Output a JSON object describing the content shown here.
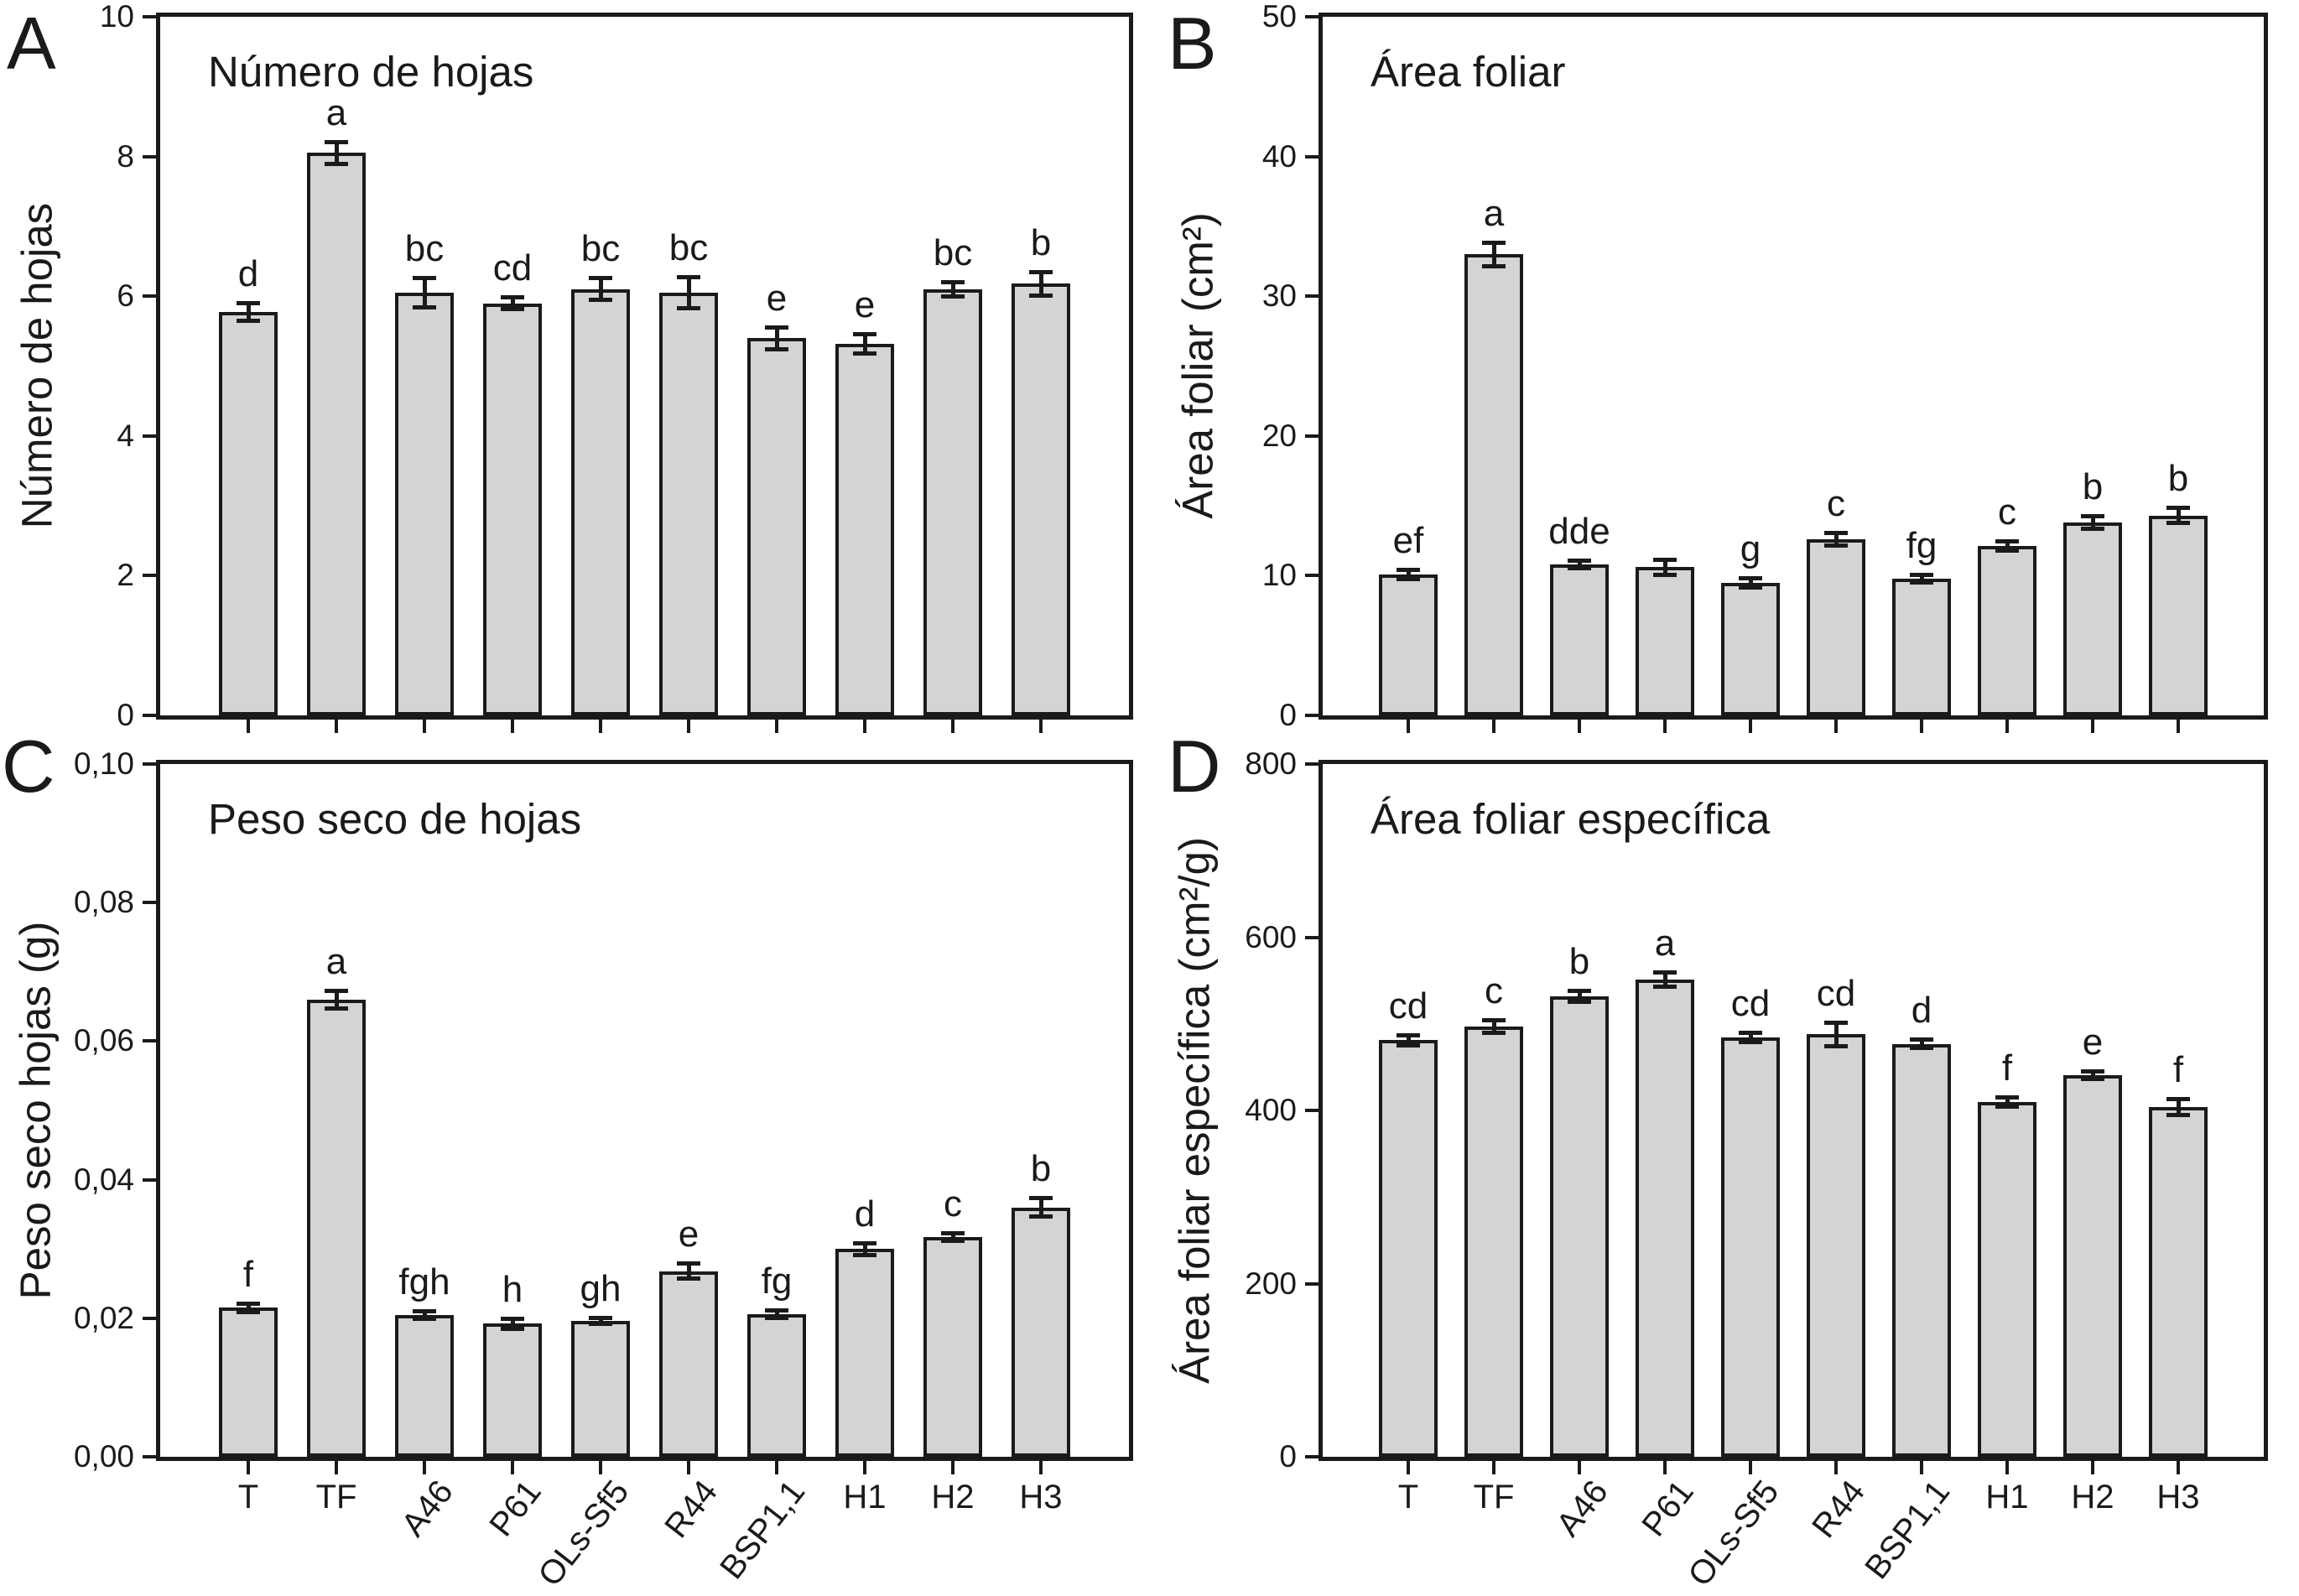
{
  "colors": {
    "bar_fill": "#d4d4d4",
    "line": "#1a1a1a",
    "background": "#ffffff"
  },
  "x_categories": [
    "T",
    "TF",
    "A46",
    "P61",
    "OLs-Sf5",
    "R44",
    "BSP1,1",
    "H1",
    "H2",
    "H3"
  ],
  "rotated_category_indices": [
    2,
    3,
    4,
    5,
    6
  ],
  "chart_data": [
    {
      "type": "bar",
      "panel_letter": "A",
      "title": "Número de hojas",
      "ylabel": "Número de hojas",
      "xlabel": "",
      "ylim": [
        0,
        10
      ],
      "ytick_values": [
        0,
        2,
        4,
        6,
        8,
        10
      ],
      "ytick_labels": [
        "0",
        "2",
        "4",
        "6",
        "8",
        "10"
      ],
      "categories": [
        "T",
        "TF",
        "A46",
        "P61",
        "OLs-Sf5",
        "R44",
        "BSP1,1",
        "H1",
        "H2",
        "H3"
      ],
      "values": [
        5.78,
        8.05,
        6.05,
        5.9,
        6.1,
        6.05,
        5.4,
        5.32,
        6.1,
        6.18
      ],
      "errors": [
        0.12,
        0.15,
        0.2,
        0.08,
        0.15,
        0.22,
        0.15,
        0.13,
        0.1,
        0.16
      ],
      "sig_letters": [
        "d",
        "a",
        "bc",
        "cd",
        "bc",
        "bc",
        "e",
        "e",
        "bc",
        "b"
      ],
      "show_x_tick_labels": false,
      "grid": false,
      "legend": "none"
    },
    {
      "type": "bar",
      "panel_letter": "B",
      "title": "Área foliar",
      "ylabel": "Área foliar (cm²)",
      "xlabel": "",
      "ylim": [
        0,
        50
      ],
      "ytick_values": [
        0,
        10,
        20,
        30,
        40,
        50
      ],
      "ytick_labels": [
        "0",
        "10",
        "20",
        "30",
        "40",
        "50"
      ],
      "categories": [
        "T",
        "TF",
        "A46",
        "P61",
        "OLs-Sf5",
        "R44",
        "BSP1,1",
        "H1",
        "H2",
        "H3"
      ],
      "values": [
        10.1,
        33.0,
        10.8,
        10.6,
        9.5,
        12.6,
        9.8,
        12.1,
        13.8,
        14.3
      ],
      "errors": [
        0.3,
        0.8,
        0.25,
        0.5,
        0.3,
        0.4,
        0.25,
        0.3,
        0.4,
        0.5
      ],
      "sig_letters": [
        "ef",
        "a",
        "dde",
        "",
        "g",
        "c",
        "fg",
        "c",
        "b",
        "b"
      ],
      "show_x_tick_labels": false,
      "grid": false,
      "legend": "none"
    },
    {
      "type": "bar",
      "panel_letter": "C",
      "title": "Peso seco de hojas",
      "ylabel": "Peso seco hojas (g)",
      "xlabel": "",
      "ylim": [
        0,
        0.1
      ],
      "ytick_values": [
        0,
        0.02,
        0.04,
        0.06,
        0.08,
        0.1
      ],
      "ytick_labels": [
        "0,00",
        "0,02",
        "0,04",
        "0,06",
        "0,08",
        "0,10"
      ],
      "categories": [
        "T",
        "TF",
        "A46",
        "P61",
        "OLs-Sf5",
        "R44",
        "BSP1,1",
        "H1",
        "H2",
        "H3"
      ],
      "values": [
        0.0215,
        0.066,
        0.0205,
        0.0192,
        0.0196,
        0.0268,
        0.0206,
        0.03,
        0.0317,
        0.036
      ],
      "errors": [
        0.0005,
        0.0012,
        0.0005,
        0.0007,
        0.0004,
        0.001,
        0.0005,
        0.0008,
        0.0005,
        0.0013
      ],
      "sig_letters": [
        "f",
        "a",
        "fgh",
        "h",
        "gh",
        "e",
        "fg",
        "d",
        "c",
        "b"
      ],
      "show_x_tick_labels": true,
      "grid": false,
      "legend": "none"
    },
    {
      "type": "bar",
      "panel_letter": "D",
      "title": "Área foliar específica",
      "ylabel": "Área foliar específica (cm²/g)",
      "xlabel": "",
      "ylim": [
        0,
        800
      ],
      "ytick_values": [
        0,
        200,
        400,
        600,
        800
      ],
      "ytick_labels": [
        "0",
        "200",
        "400",
        "600",
        "800"
      ],
      "categories": [
        "T",
        "TF",
        "A46",
        "P61",
        "OLs-Sf5",
        "R44",
        "BSP1,1",
        "H1",
        "H2",
        "H3"
      ],
      "values": [
        481,
        497,
        532,
        551,
        484,
        488,
        477,
        410,
        441,
        404
      ],
      "errors": [
        5,
        7,
        6,
        8,
        5,
        13,
        4,
        5,
        4,
        9
      ],
      "sig_letters": [
        "cd",
        "c",
        "b",
        "a",
        "cd",
        "cd",
        "d",
        "f",
        "e",
        "f"
      ],
      "show_x_tick_labels": true,
      "grid": false,
      "legend": "none"
    }
  ]
}
